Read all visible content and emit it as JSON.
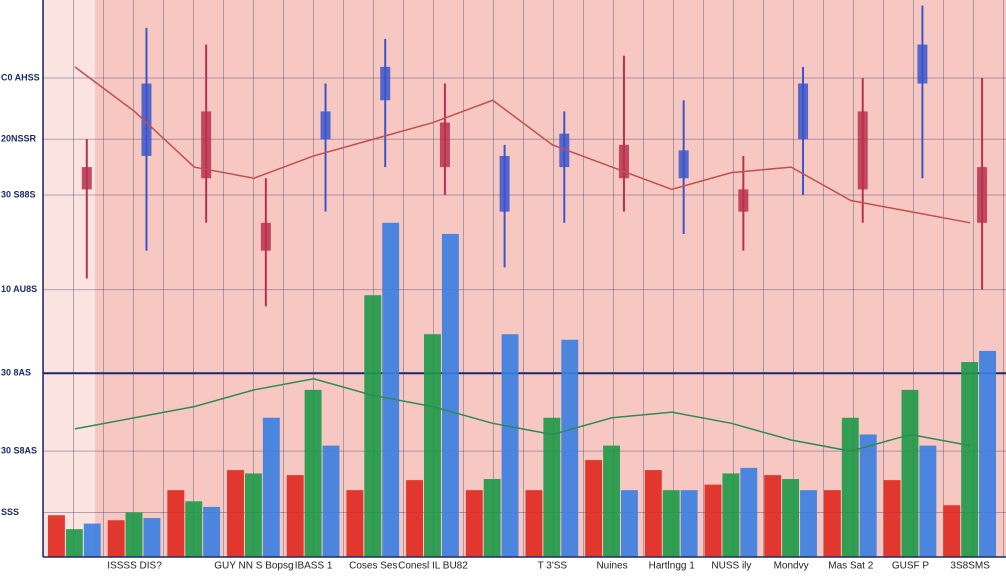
{
  "chart_data": [
    {
      "type": "bar",
      "categories": [
        null,
        "ISSSS DIS?",
        null,
        "GUY NN S Bopsg",
        "IBASS 1",
        "Coses Ses",
        "Conesl IL BU82",
        null,
        "T 3'SS",
        "Nuines",
        "Hartlngg 1",
        "NUSS ily",
        "Mondvy",
        "Mas Sat 2",
        "GUSF P",
        "3S8SMS"
      ],
      "series": [
        {
          "color": "#e02a22",
          "values": [
            7.5,
            6.6,
            12,
            15.6,
            14.7,
            12,
            13.8,
            12,
            12,
            17.4,
            15.6,
            13,
            14.7,
            12,
            13.8,
            9.3
          ]
        },
        {
          "color": "#1f9a4a",
          "values": [
            5,
            8,
            10,
            15,
            30,
            47,
            40,
            14,
            25,
            20,
            12,
            15,
            14,
            25,
            30,
            35
          ]
        },
        {
          "color": "#3d7fe0",
          "values": [
            6,
            7,
            9,
            25,
            20,
            60,
            58,
            40,
            39,
            12,
            12,
            16,
            12,
            22,
            20,
            37
          ]
        }
      ],
      "ylim": [
        0,
        100
      ],
      "yticks": [
        {
          "value": 86,
          "label": "C0 AHSS"
        },
        {
          "value": 75,
          "label": "20NSSR"
        },
        {
          "value": 65,
          "label": "30 S88S"
        },
        {
          "value": 48,
          "label": "10 AU8S"
        },
        {
          "value": 33,
          "label": "30 8AS"
        },
        {
          "value": 19,
          "label": "30 S8AS"
        },
        {
          "value": 8,
          "label": "SSS"
        }
      ],
      "grid": true
    },
    {
      "type": "candlestick",
      "open": [
        70,
        72,
        80,
        60,
        75,
        82,
        78,
        62,
        70,
        74,
        68,
        66,
        75,
        80,
        85,
        70
      ],
      "high": [
        75,
        95,
        92,
        68,
        85,
        93,
        85,
        74,
        80,
        90,
        82,
        72,
        88,
        86,
        99,
        86
      ],
      "low": [
        50,
        55,
        60,
        45,
        62,
        70,
        65,
        52,
        60,
        62,
        58,
        55,
        65,
        60,
        68,
        48
      ],
      "close": [
        66,
        85,
        68,
        55,
        80,
        88,
        70,
        72,
        76,
        68,
        73,
        62,
        85,
        66,
        92,
        60
      ],
      "up_color": "#3a55cc",
      "down_color": "#b8304e"
    },
    {
      "type": "line",
      "series": [
        {
          "color": "#2e8b57",
          "values": [
            23,
            25,
            27,
            30,
            32,
            29,
            27,
            24,
            22,
            25,
            26,
            24,
            21,
            19,
            22,
            20
          ]
        },
        {
          "color": "#c0504d",
          "values": [
            88,
            80,
            70,
            68,
            72,
            75,
            78,
            82,
            74,
            70,
            66,
            69,
            70,
            64,
            62,
            60
          ]
        }
      ]
    }
  ]
}
